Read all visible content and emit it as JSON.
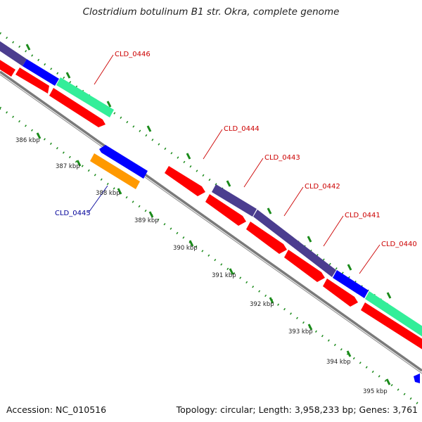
{
  "title": "Clostridium botulinum B1 str. Okra, complete genome",
  "footer": {
    "accession": "Accession: NC_010516",
    "summary": "Topology: circular; Length: 3,958,233 bp; Genes: 3,761"
  },
  "colors": {
    "forward_cds": "#ff0000",
    "reverse_cds": "#0000ff",
    "cog_purple": "#4b3d8f",
    "cog_green": "#33ee99",
    "cog_orange": "#ff9900",
    "backbone": "#7a7a7a",
    "tick": "#1a8a1a",
    "label_forward": "#cc0000",
    "label_reverse": "#000099"
  },
  "scale_labels": [
    "386 kbp",
    "387 kbp",
    "388 kbp",
    "389 kbp",
    "390 kbp",
    "391 kbp",
    "392 kbp",
    "393 kbp",
    "394 kbp",
    "395 kbp"
  ],
  "gene_labels": [
    {
      "name": "CLD_0446",
      "strand": "forward"
    },
    {
      "name": "CLD_0444",
      "strand": "forward"
    },
    {
      "name": "CLD_0443",
      "strand": "forward"
    },
    {
      "name": "CLD_0442",
      "strand": "forward"
    },
    {
      "name": "CLD_0441",
      "strand": "forward"
    },
    {
      "name": "CLD_0440",
      "strand": "forward"
    },
    {
      "name": "CLD_0445",
      "strand": "reverse"
    }
  ]
}
